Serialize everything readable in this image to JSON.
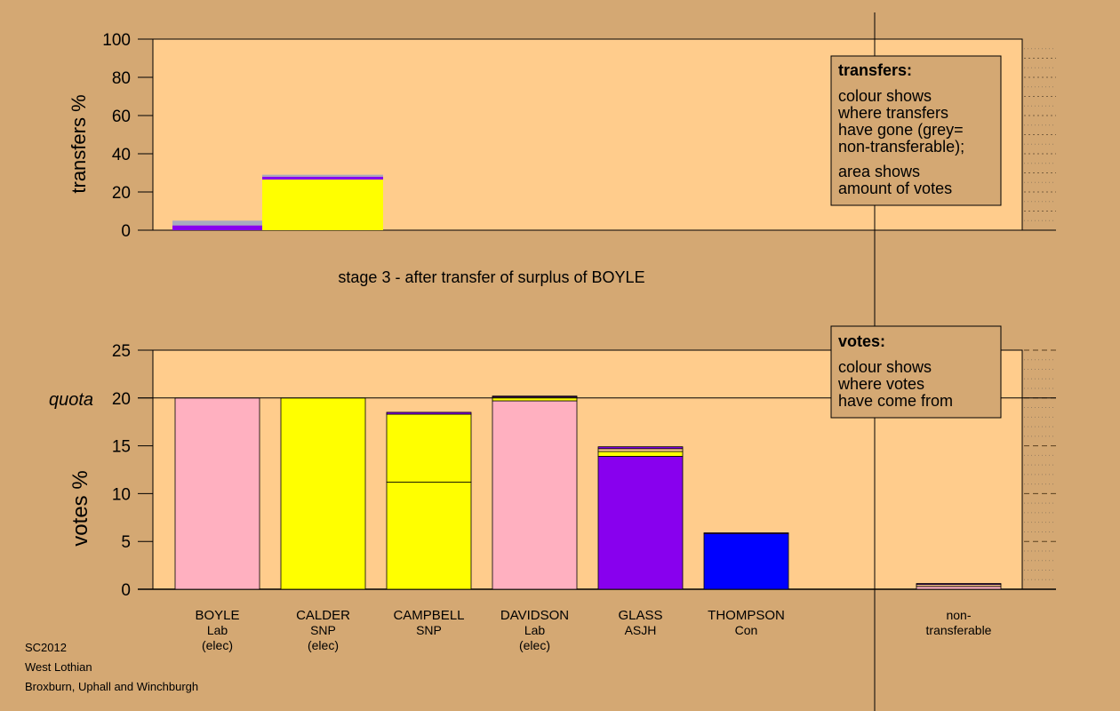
{
  "colors": {
    "page_bg": "#d4a873",
    "plot_bg": "#ffcc8c",
    "lab": "#ffb0c0",
    "snp": "#ffff00",
    "asjh": "#8800ee",
    "con": "#0000ff",
    "nontransferable": "#a8a8c0"
  },
  "top_chart": {
    "ylabel": "transfers %",
    "ylim": [
      0,
      100
    ],
    "yticks": [
      0,
      20,
      40,
      60,
      80,
      100
    ],
    "caption": "stage 3 - after transfer of surplus of BOYLE",
    "legend": {
      "title": "transfers:",
      "lines1": [
        "colour shows",
        "where transfers",
        "have gone (grey=",
        "non-transferable);"
      ],
      "lines2": [
        "area shows",
        "amount of votes"
      ]
    }
  },
  "bottom_chart": {
    "ylabel": "votes %",
    "ylim": [
      0,
      25
    ],
    "yticks": [
      0,
      5,
      10,
      15,
      20,
      25
    ],
    "quota_label": "quota",
    "quota": 20,
    "legend": {
      "title": "votes:",
      "lines": [
        "colour shows",
        "where votes",
        "have come from"
      ]
    }
  },
  "chart_data": [
    {
      "type": "bar",
      "stacked": true,
      "ylabel": "transfers %",
      "ylim": [
        0,
        100
      ],
      "caption": "stage 3 - after transfer of surplus of BOYLE",
      "bars": [
        {
          "segments": [
            {
              "color": "#8800ee",
              "value": 2.5
            },
            {
              "color": "#a8a8c0",
              "value": 2.5
            }
          ]
        },
        {
          "segments": [
            {
              "color": "#ffff00",
              "value": 26.5
            },
            {
              "color": "#8800ee",
              "value": 1.5
            },
            {
              "color": "#a8a8c0",
              "value": 1.0
            }
          ]
        }
      ]
    },
    {
      "type": "bar",
      "stacked": true,
      "ylabel": "votes %",
      "ylim": [
        0,
        25
      ],
      "quota": 20,
      "candidates": [
        {
          "lines": [
            "BOYLE",
            "Lab",
            "(elec)"
          ],
          "segments": [
            {
              "color": "#ffb0c0",
              "value": 20.0
            }
          ]
        },
        {
          "lines": [
            "CALDER",
            "SNP",
            "(elec)"
          ],
          "segments": [
            {
              "color": "#ffff00",
              "value": 20.0
            }
          ]
        },
        {
          "lines": [
            "CAMPBELL",
            "SNP"
          ],
          "segments": [
            {
              "color": "#ffff00",
              "value": 11.2
            },
            {
              "color": "#ffff00",
              "value": 7.1
            },
            {
              "color": "#8800ee",
              "value": 0.2
            }
          ]
        },
        {
          "lines": [
            "DAVIDSON",
            "Lab",
            "(elec)"
          ],
          "segments": [
            {
              "color": "#ffb0c0",
              "value": 19.7
            },
            {
              "color": "#ffff00",
              "value": 0.4
            },
            {
              "color": "#8800ee",
              "value": 0.1
            }
          ]
        },
        {
          "lines": [
            "GLASS",
            "ASJH"
          ],
          "segments": [
            {
              "color": "#8800ee",
              "value": 13.9
            },
            {
              "color": "#ffff00",
              "value": 0.5
            },
            {
              "color": "#ffcc8c",
              "value": 0.3
            },
            {
              "color": "#8800ee",
              "value": 0.2
            }
          ]
        },
        {
          "lines": [
            "THOMPSON",
            "Con"
          ],
          "segments": [
            {
              "color": "#0000ff",
              "value": 5.8
            },
            {
              "color": "#8800ee",
              "value": 0.1
            }
          ]
        },
        {
          "lines": [
            "non-",
            "transferable"
          ],
          "segments": [
            {
              "color": "#ffb0c0",
              "value": 0.3
            },
            {
              "color": "#ffcc8c",
              "value": 0.2
            },
            {
              "color": "#8800ee",
              "value": 0.1
            }
          ]
        }
      ]
    }
  ],
  "footer": {
    "line1": "SC2012",
    "line2": "West Lothian",
    "line3": "Broxburn, Uphall and Winchburgh"
  }
}
